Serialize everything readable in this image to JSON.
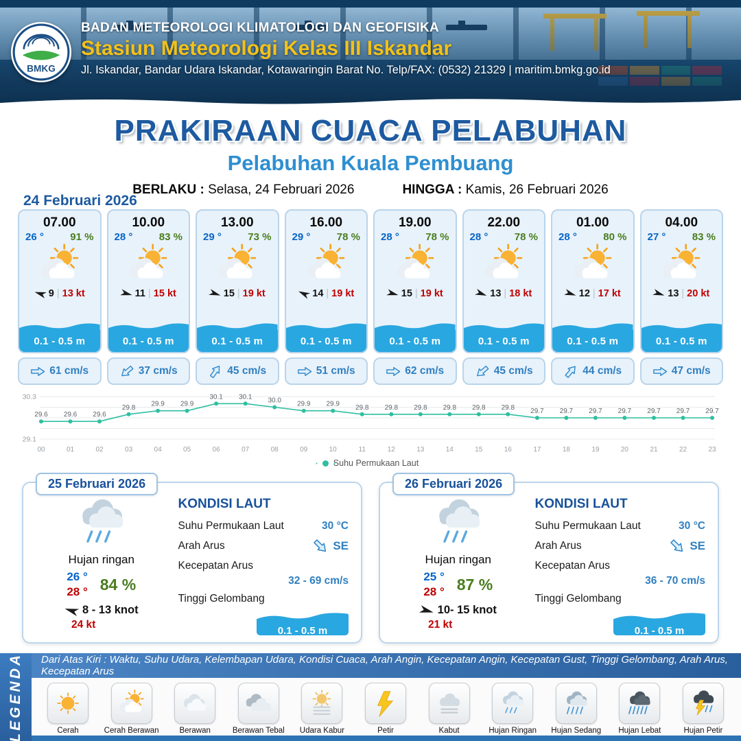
{
  "header": {
    "agency": "BADAN METEOROLOGI KLIMATOLOGI DAN GEOFISIKA",
    "station": "Stasiun Meteorologi Kelas III Iskandar",
    "address": "Jl. Iskandar, Bandar Udara Iskandar, Kotawaringin Barat No. Telp/FAX: (0532) 21329 | maritim.bmkg.go.id",
    "logo_text": "BMKG"
  },
  "title": {
    "main": "PRAKIRAAN CUACA PELABUHAN",
    "port": "Pelabuhan Kuala Pembuang",
    "valid_label": "BERLAKU :",
    "valid_value": "Selasa, 24 Februari 2026",
    "until_label": "HINGGA :",
    "until_value": "Kamis, 26 Februari 2026"
  },
  "forecast_date": "24 Februari 2026",
  "forecast_cards": [
    {
      "time": "07.00",
      "temp": "26 °",
      "humidity": "91 %",
      "icon": "cerah-berawan",
      "wind_dir_deg": 197,
      "wind_speed": "9",
      "gust": "13 kt",
      "wave": "0.1 - 0.5 m",
      "current_dir_deg": 0,
      "current": "61 cm/s"
    },
    {
      "time": "10.00",
      "temp": "28 °",
      "humidity": "83 %",
      "icon": "cerah-berawan",
      "wind_dir_deg": 15,
      "wind_speed": "11",
      "gust": "15 kt",
      "wave": "0.1 - 0.5 m",
      "current_dir_deg": 140,
      "current": "37 cm/s"
    },
    {
      "time": "13.00",
      "temp": "29 °",
      "humidity": "73 %",
      "icon": "cerah-berawan",
      "wind_dir_deg": 18,
      "wind_speed": "15",
      "gust": "19 kt",
      "wave": "0.1 - 0.5 m",
      "current_dir_deg": 305,
      "current": "45 cm/s"
    },
    {
      "time": "16.00",
      "temp": "29 °",
      "humidity": "78 %",
      "icon": "cerah-berawan",
      "wind_dir_deg": 205,
      "wind_speed": "14",
      "gust": "19 kt",
      "wave": "0.1 - 0.5 m",
      "current_dir_deg": 0,
      "current": "51 cm/s"
    },
    {
      "time": "19.00",
      "temp": "28 °",
      "humidity": "78 %",
      "icon": "cerah-berawan",
      "wind_dir_deg": 15,
      "wind_speed": "15",
      "gust": "19 kt",
      "wave": "0.1 - 0.5 m",
      "current_dir_deg": 0,
      "current": "62 cm/s"
    },
    {
      "time": "22.00",
      "temp": "28 °",
      "humidity": "78 %",
      "icon": "cerah-berawan",
      "wind_dir_deg": 20,
      "wind_speed": "13",
      "gust": "18 kt",
      "wave": "0.1 - 0.5 m",
      "current_dir_deg": 140,
      "current": "45 cm/s"
    },
    {
      "time": "01.00",
      "temp": "28 °",
      "humidity": "80 %",
      "icon": "cerah-berawan",
      "wind_dir_deg": 18,
      "wind_speed": "12",
      "gust": "17 kt",
      "wave": "0.1 - 0.5 m",
      "current_dir_deg": 310,
      "current": "44 cm/s"
    },
    {
      "time": "04.00",
      "temp": "27 °",
      "humidity": "83 %",
      "icon": "cerah-berawan",
      "wind_dir_deg": 18,
      "wind_speed": "13",
      "gust": "20 kt",
      "wave": "0.1 - 0.5 m",
      "current_dir_deg": 0,
      "current": "47 cm/s"
    }
  ],
  "chart_data": {
    "type": "line",
    "series_label": "Suhu Permukaan Laut",
    "x": [
      "00",
      "01",
      "02",
      "03",
      "04",
      "05",
      "06",
      "07",
      "08",
      "09",
      "10",
      "11",
      "12",
      "13",
      "14",
      "15",
      "16",
      "17",
      "18",
      "19",
      "20",
      "21",
      "22",
      "23"
    ],
    "values": [
      29.6,
      29.6,
      29.6,
      29.8,
      29.9,
      29.9,
      30.1,
      30.1,
      30.0,
      29.9,
      29.9,
      29.8,
      29.8,
      29.8,
      29.8,
      29.8,
      29.8,
      29.7,
      29.7,
      29.7,
      29.7,
      29.7,
      29.7,
      29.7
    ],
    "ylim": [
      29.1,
      30.3
    ],
    "yticks": [
      29.1,
      30.3
    ],
    "gridlines": [
      29.1,
      29.4,
      29.7,
      30.0,
      30.3
    ],
    "unit": "°C",
    "legend_position": "bottom",
    "grid": true
  },
  "day_cards": [
    {
      "date": "25 Februari 2026",
      "icon": "hujan-ringan",
      "condition": "Hujan ringan",
      "temp_min": "26 °",
      "temp_max": "28 °",
      "humidity": "84 %",
      "wind_dir_deg": 197,
      "wind": "8 - 13 knot",
      "gust": "24 kt",
      "sea": {
        "title": "KONDISI LAUT",
        "sst_label": "Suhu Permukaan Laut",
        "sst": "30 °C",
        "current_dir_label": "Arah Arus",
        "current_dir": "SE",
        "current_dir_deg": 45,
        "current_speed_label": "Kecepatan Arus",
        "current_speed": "32 - 69 cm/s",
        "wave_label": "Tinggi Gelombang",
        "wave": "0.1 - 0.5 m"
      }
    },
    {
      "date": "26 Februari 2026",
      "icon": "hujan-ringan",
      "condition": "Hujan ringan",
      "temp_min": "25 °",
      "temp_max": "28 °",
      "humidity": "87 %",
      "wind_dir_deg": 15,
      "wind": "10- 15 knot",
      "gust": "21 kt",
      "sea": {
        "title": "KONDISI LAUT",
        "sst_label": "Suhu Permukaan Laut",
        "sst": "30 °C",
        "current_dir_label": "Arah Arus",
        "current_dir": "SE",
        "current_dir_deg": 45,
        "current_speed_label": "Kecepatan Arus",
        "current_speed": "36 - 70 cm/s",
        "wave_label": "Tinggi Gelombang",
        "wave": "0.1 - 0.5 m"
      }
    }
  ],
  "legend": {
    "strip_label": "LEGENDA",
    "caption": "Dari Atas Kiri : Waktu, Suhu Udara, Kelembapan Udara, Kondisi Cuaca, Arah Angin, Kecepatan Angin, Kecepatan Gust, Tinggi Gelombang, Arah Arus, Kecepatan Arus",
    "items": [
      {
        "label": "Cerah",
        "icon": "cerah"
      },
      {
        "label": "Cerah Berawan",
        "icon": "cerah-berawan"
      },
      {
        "label": "Berawan",
        "icon": "berawan"
      },
      {
        "label": "Berawan Tebal",
        "icon": "berawan-tebal"
      },
      {
        "label": "Udara Kabur",
        "icon": "udara-kabur"
      },
      {
        "label": "Petir",
        "icon": "petir"
      },
      {
        "label": "Kabut",
        "icon": "kabut"
      },
      {
        "label": "Hujan Ringan",
        "icon": "hujan-ringan"
      },
      {
        "label": "Hujan Sedang",
        "icon": "hujan-sedang"
      },
      {
        "label": "Hujan Lebat",
        "icon": "hujan-lebat"
      },
      {
        "label": "Hujan Petir",
        "icon": "hujan-petir"
      }
    ]
  },
  "colors": {
    "header_bg": "#1b4f7d",
    "station_yellow": "#f2c21a",
    "title_blue": "#1d5aa0",
    "port_blue": "#2e8fd0",
    "card_bg": "#e8f2fb",
    "card_border": "#b9d4ea",
    "band_blue": "#29a7e0",
    "temp_blue": "#0565c8",
    "humidity_green": "#4a7d1f",
    "gust_red": "#c00000",
    "value_blue": "#2f7fc0",
    "chart_line": "#2fbfa0",
    "legend_bar": "#3c78b4"
  }
}
